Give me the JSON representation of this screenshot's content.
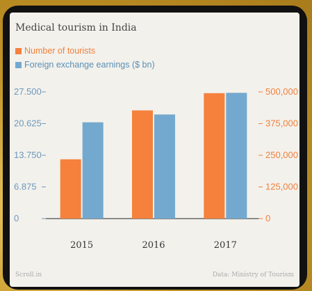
{
  "chart_data": {
    "type": "bar",
    "title": "Medical tourism in India",
    "categories": [
      "2015",
      "2016",
      "2017"
    ],
    "series": [
      {
        "name": "Number of tourists",
        "axis": "right",
        "color": "#f5813d",
        "values": [
          234000,
          427000,
          495000
        ]
      },
      {
        "name": "Foreign exchange earnings ($ bn)",
        "axis": "left",
        "color": "#74a9cf",
        "values": [
          20.9,
          22.6,
          27.3
        ]
      }
    ],
    "y_left": {
      "ylim": [
        0,
        27.5
      ],
      "ticks": [
        "0",
        "6.875",
        "13.750",
        "20.625",
        "27.500"
      ],
      "color": "#6d99bd"
    },
    "y_right": {
      "ylim": [
        0,
        500000
      ],
      "ticks": [
        "0",
        "125,000",
        "250,000",
        "375,000",
        "500,000"
      ],
      "color": "#f0803c"
    },
    "grid": false,
    "legend_placement": "top-left"
  },
  "footer": {
    "source_left": "Scroll.in",
    "source_right": "Data: Ministry of Tourism"
  }
}
